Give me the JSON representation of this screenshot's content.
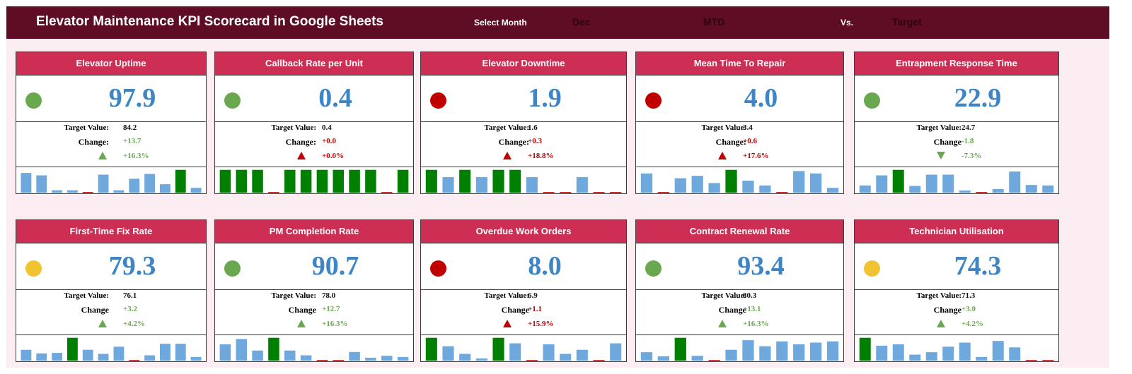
{
  "header": {
    "title": "Elevator Maintenance KPI Scorecard in Google Sheets",
    "select_month_label": "Select Month",
    "month_value": "Dec",
    "period_value": "MTD",
    "vs_label": "Vs.",
    "compare_value": "Target"
  },
  "colors": {
    "banner": "#5f0c25",
    "card_header": "#cc2e54",
    "value_blue": "#3d85c6",
    "good_green": "#6aa84f",
    "bad_red": "#c00000",
    "warn_amber": "#f1c232",
    "bar_blue": "#6fa8dc",
    "bar_green": "#008000"
  },
  "cards": [
    {
      "title": "Elevator Uptime",
      "value": "97.9",
      "status": "green",
      "target_label": "Target Value:",
      "target": "84.2",
      "change_label": "Change:",
      "change": "+13.7",
      "change_color": "green",
      "pct": "+16.3%",
      "arrow": "up-g",
      "spark": [
        {
          "t": "b",
          "v": 0.82
        },
        {
          "t": "b",
          "v": 0.72
        },
        {
          "t": "b",
          "v": 0.1
        },
        {
          "t": "b",
          "v": 0.1
        },
        {
          "t": "z"
        },
        {
          "t": "b",
          "v": 0.75
        },
        {
          "t": "b",
          "v": 0.1
        },
        {
          "t": "b",
          "v": 0.58
        },
        {
          "t": "b",
          "v": 0.78
        },
        {
          "t": "b",
          "v": 0.35
        },
        {
          "t": "g",
          "v": 0.95
        },
        {
          "t": "b",
          "v": 0.2
        }
      ]
    },
    {
      "title": "Callback Rate per Unit",
      "value": "0.4",
      "status": "green",
      "target_label": "Target Value:",
      "target": "0.4",
      "change_label": "Change:",
      "change": "+0.0",
      "change_color": "red",
      "pct": "+0.0%",
      "arrow": "up-r",
      "spark": [
        {
          "t": "g",
          "v": 0.95
        },
        {
          "t": "g",
          "v": 0.95
        },
        {
          "t": "g",
          "v": 0.95
        },
        {
          "t": "z"
        },
        {
          "t": "g",
          "v": 0.95
        },
        {
          "t": "g",
          "v": 0.95
        },
        {
          "t": "g",
          "v": 0.95
        },
        {
          "t": "g",
          "v": 0.95
        },
        {
          "t": "g",
          "v": 0.95
        },
        {
          "t": "g",
          "v": 0.95
        },
        {
          "t": "z"
        },
        {
          "t": "g",
          "v": 0.95
        }
      ]
    },
    {
      "title": "Elevator Downtime",
      "value": "1.9",
      "status": "red",
      "target_label": "Target Value:",
      "target": "1.6",
      "change_label": "Change:",
      "change": "+0.3",
      "change_color": "red",
      "pct": "+18.8%",
      "arrow": "up-r",
      "spark": [
        {
          "t": "g",
          "v": 0.95
        },
        {
          "t": "b",
          "v": 0.65
        },
        {
          "t": "g",
          "v": 0.95
        },
        {
          "t": "b",
          "v": 0.65
        },
        {
          "t": "g",
          "v": 0.95
        },
        {
          "t": "g",
          "v": 0.95
        },
        {
          "t": "b",
          "v": 0.65
        },
        {
          "t": "z"
        },
        {
          "t": "z"
        },
        {
          "t": "b",
          "v": 0.65
        },
        {
          "t": "z"
        },
        {
          "t": "z"
        }
      ]
    },
    {
      "title": "Mean Time To Repair",
      "value": "4.0",
      "status": "red",
      "target_label": "Target Value:",
      "target": "3.4",
      "change_label": "Change:",
      "change": "+0.6",
      "change_color": "red",
      "pct": "+17.6%",
      "arrow": "up-r",
      "spark": [
        {
          "t": "b",
          "v": 0.8
        },
        {
          "t": "z"
        },
        {
          "t": "b",
          "v": 0.6
        },
        {
          "t": "b",
          "v": 0.7
        },
        {
          "t": "b",
          "v": 0.4
        },
        {
          "t": "g",
          "v": 0.95
        },
        {
          "t": "b",
          "v": 0.5
        },
        {
          "t": "b",
          "v": 0.3
        },
        {
          "t": "z"
        },
        {
          "t": "b",
          "v": 0.9
        },
        {
          "t": "b",
          "v": 0.8
        },
        {
          "t": "b",
          "v": 0.2
        }
      ]
    },
    {
      "title": "Entrapment Response Time",
      "value": "22.9",
      "status": "green",
      "target_label": "Target Value:",
      "target": "24.7",
      "change_label": "Change",
      "change": "-1.8",
      "change_color": "green",
      "pct": "-7.3%",
      "arrow": "down-g",
      "spark": [
        {
          "t": "b",
          "v": 0.3
        },
        {
          "t": "b",
          "v": 0.72
        },
        {
          "t": "g",
          "v": 0.95
        },
        {
          "t": "b",
          "v": 0.28
        },
        {
          "t": "b",
          "v": 0.75
        },
        {
          "t": "b",
          "v": 0.75
        },
        {
          "t": "b",
          "v": 0.05
        },
        {
          "t": "z"
        },
        {
          "t": "b",
          "v": 0.15
        },
        {
          "t": "b",
          "v": 0.88
        },
        {
          "t": "b",
          "v": 0.32
        },
        {
          "t": "b",
          "v": 0.3
        }
      ]
    },
    {
      "title": "First-Time Fix Rate",
      "value": "79.3",
      "status": "amber",
      "target_label": "Target Value:",
      "target": "76.1",
      "change_label": "Change",
      "change": "+3.2",
      "change_color": "green",
      "pct": "+4.2%",
      "arrow": "up-g",
      "spark": [
        {
          "t": "b",
          "v": 0.45
        },
        {
          "t": "b",
          "v": 0.3
        },
        {
          "t": "b",
          "v": 0.32
        },
        {
          "t": "g",
          "v": 0.95
        },
        {
          "t": "b",
          "v": 0.45
        },
        {
          "t": "b",
          "v": 0.28
        },
        {
          "t": "b",
          "v": 0.58
        },
        {
          "t": "z"
        },
        {
          "t": "b",
          "v": 0.22
        },
        {
          "t": "b",
          "v": 0.7
        },
        {
          "t": "b",
          "v": 0.7
        },
        {
          "t": "b",
          "v": 0.15
        }
      ]
    },
    {
      "title": "PM Completion Rate",
      "value": "90.7",
      "status": "green",
      "target_label": "Target Value:",
      "target": "78.0",
      "change_label": "Change",
      "change": "+12.7",
      "change_color": "green",
      "pct": "+16.3%",
      "arrow": "up-g",
      "spark": [
        {
          "t": "b",
          "v": 0.68
        },
        {
          "t": "b",
          "v": 0.9
        },
        {
          "t": "b",
          "v": 0.42
        },
        {
          "t": "g",
          "v": 0.95
        },
        {
          "t": "b",
          "v": 0.42
        },
        {
          "t": "b",
          "v": 0.22
        },
        {
          "t": "z"
        },
        {
          "t": "z"
        },
        {
          "t": "b",
          "v": 0.36
        },
        {
          "t": "b",
          "v": 0.12
        },
        {
          "t": "b",
          "v": 0.2
        },
        {
          "t": "b",
          "v": 0.15
        }
      ]
    },
    {
      "title": "Overdue Work Orders",
      "value": "8.0",
      "status": "red",
      "target_label": "Target Value:",
      "target": "6.9",
      "change_label": "Change",
      "change": "+1.1",
      "change_color": "red",
      "pct": "+15.9%",
      "arrow": "up-r",
      "spark": [
        {
          "t": "g",
          "v": 0.95
        },
        {
          "t": "b",
          "v": 0.6
        },
        {
          "t": "b",
          "v": 0.28
        },
        {
          "t": "b",
          "v": 0.05
        },
        {
          "t": "g",
          "v": 0.95
        },
        {
          "t": "b",
          "v": 0.72
        },
        {
          "t": "z"
        },
        {
          "t": "b",
          "v": 0.68
        },
        {
          "t": "b",
          "v": 0.28
        },
        {
          "t": "b",
          "v": 0.45
        },
        {
          "t": "z"
        },
        {
          "t": "b",
          "v": 0.72
        }
      ]
    },
    {
      "title": "Contract Renewal Rate",
      "value": "93.4",
      "status": "green",
      "target_label": "Target Value:",
      "target": "80.3",
      "change_label": "Change",
      "change": "+13.1",
      "change_color": "green",
      "pct": "+16.3%",
      "arrow": "up-g",
      "spark": [
        {
          "t": "b",
          "v": 0.35
        },
        {
          "t": "b",
          "v": 0.18
        },
        {
          "t": "g",
          "v": 0.95
        },
        {
          "t": "b",
          "v": 0.2
        },
        {
          "t": "z"
        },
        {
          "t": "b",
          "v": 0.45
        },
        {
          "t": "b",
          "v": 0.85
        },
        {
          "t": "b",
          "v": 0.6
        },
        {
          "t": "b",
          "v": 0.8
        },
        {
          "t": "b",
          "v": 0.68
        },
        {
          "t": "b",
          "v": 0.75
        },
        {
          "t": "b",
          "v": 0.8
        }
      ]
    },
    {
      "title": "Technician Utilisation",
      "value": "74.3",
      "status": "amber",
      "target_label": "Target Value:",
      "target": "71.3",
      "change_label": "Change",
      "change": "+3.0",
      "change_color": "green",
      "pct": "+4.2%",
      "arrow": "up-g",
      "spark": [
        {
          "t": "g",
          "v": 0.95
        },
        {
          "t": "b",
          "v": 0.62
        },
        {
          "t": "b",
          "v": 0.68
        },
        {
          "t": "b",
          "v": 0.25
        },
        {
          "t": "b",
          "v": 0.35
        },
        {
          "t": "b",
          "v": 0.58
        },
        {
          "t": "b",
          "v": 0.75
        },
        {
          "t": "b",
          "v": 0.15
        },
        {
          "t": "b",
          "v": 0.82
        },
        {
          "t": "b",
          "v": 0.55
        },
        {
          "t": "z"
        },
        {
          "t": "z"
        }
      ]
    }
  ]
}
